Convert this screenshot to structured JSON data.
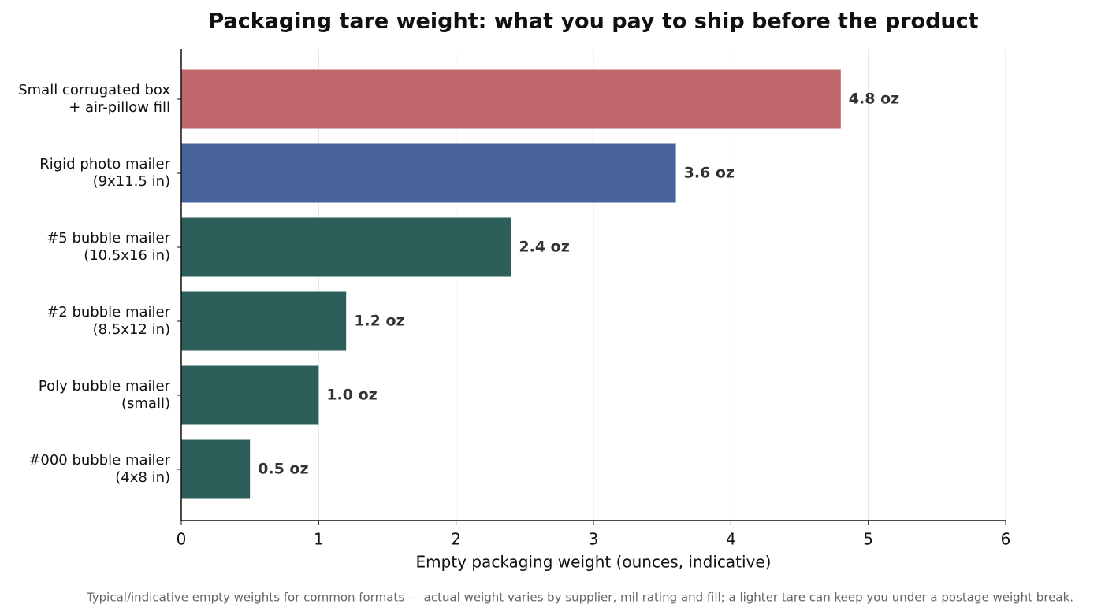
{
  "chart_data": {
    "type": "barh",
    "title": "Packaging tare weight: what you pay to ship before the product",
    "xlabel": "Empty packaging weight (ounces, indicative)",
    "footnote": "Typical/indicative empty weights for common formats — actual weight varies by supplier, mil rating and fill; a lighter tare can keep you under a postage weight break.",
    "categories": [
      "Small corrugated box\n+ air-pillow fill",
      "Rigid photo mailer\n(9x11.5 in)",
      "#5 bubble mailer\n(10.5x16 in)",
      "#2 bubble mailer\n(8.5x12 in)",
      "Poly bubble mailer\n(small)",
      "#000 bubble mailer\n(4x8 in)"
    ],
    "values": [
      4.8,
      3.6,
      2.4,
      1.2,
      1.0,
      0.5
    ],
    "value_labels": [
      "4.8 oz",
      "3.6 oz",
      "2.4 oz",
      "1.2 oz",
      "1.0 oz",
      "0.5 oz"
    ],
    "colors": [
      "#c0676b",
      "#48639a",
      "#2d5f5a",
      "#2d5f5a",
      "#2d5f5a",
      "#2d5f5a"
    ],
    "xlim": [
      0,
      6
    ],
    "xticks": [
      0,
      1,
      2,
      3,
      4,
      5,
      6
    ],
    "grid": true
  }
}
